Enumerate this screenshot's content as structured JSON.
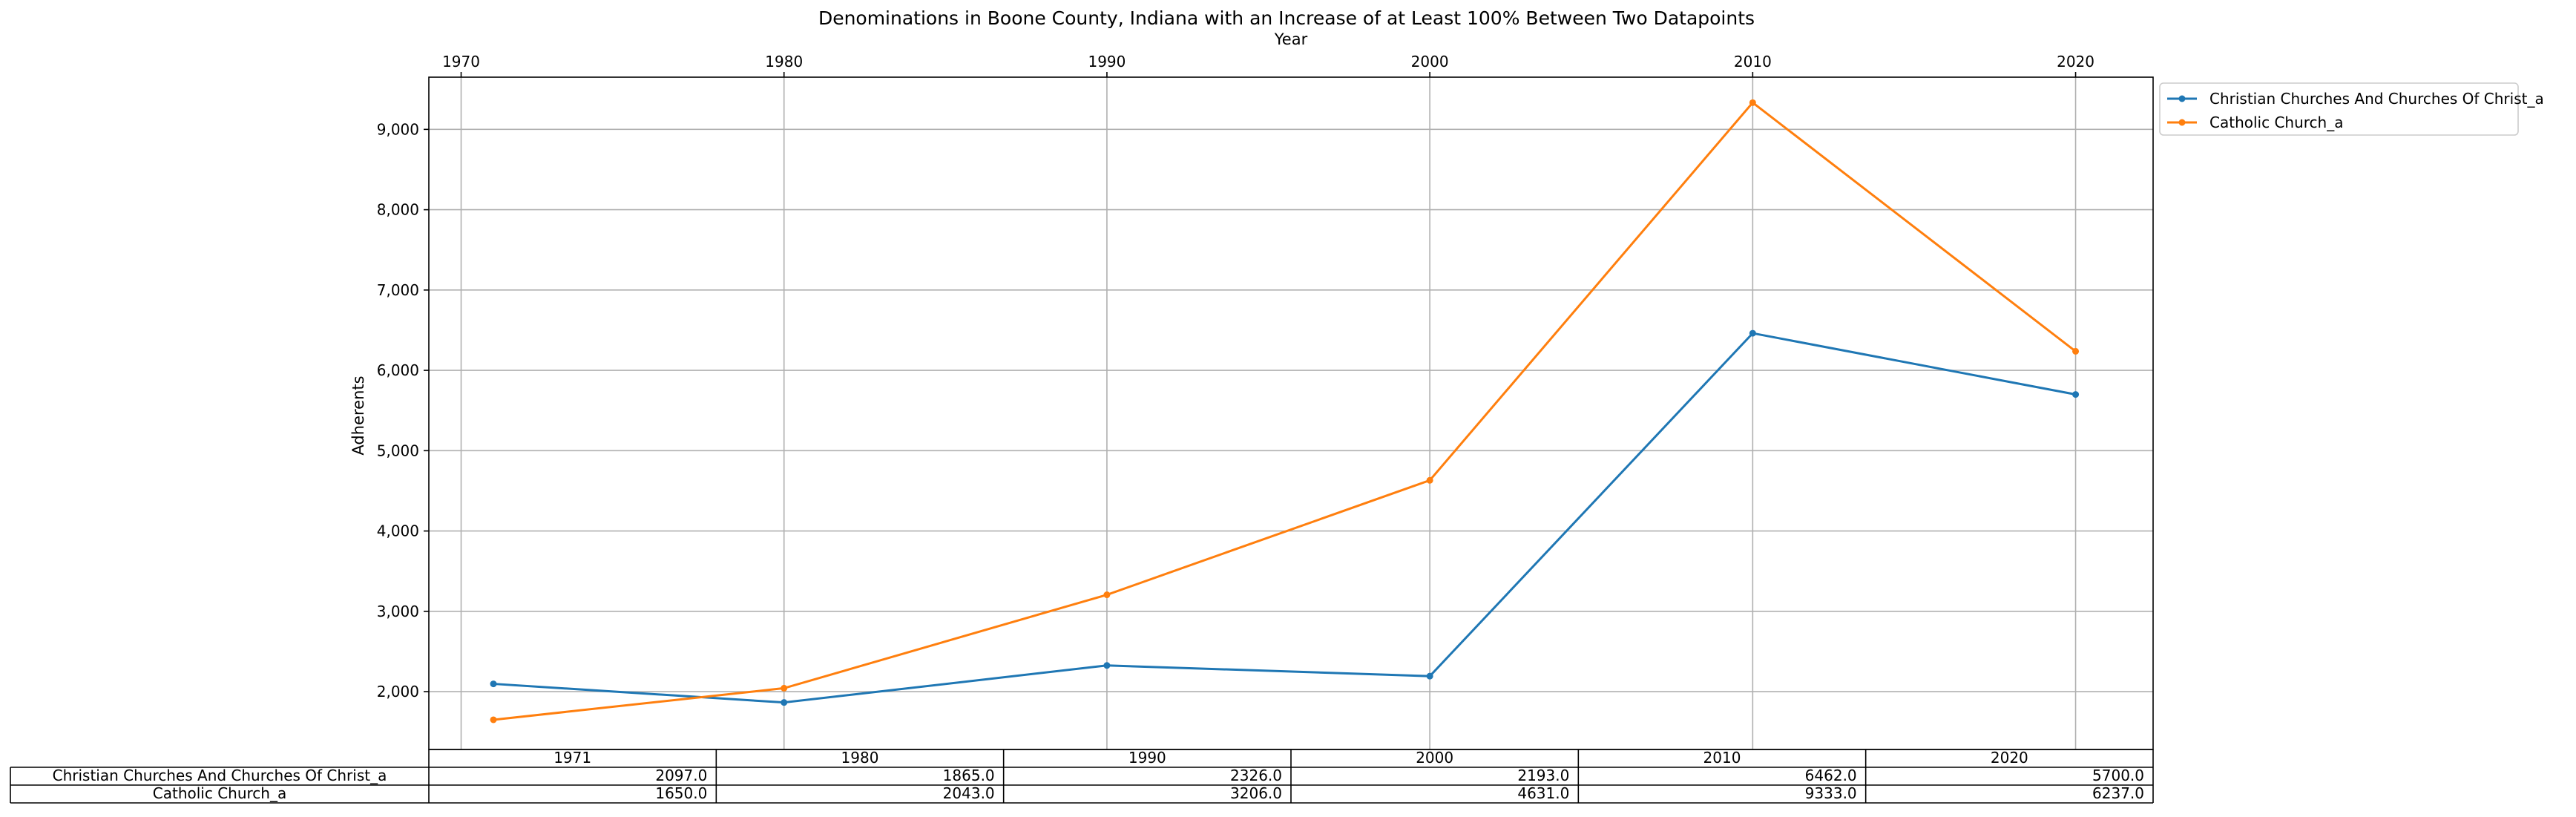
{
  "colors": {
    "series_0": "#1f77b4",
    "series_1": "#ff7f0e",
    "grid": "#b0b0b0",
    "axes": "#000000"
  },
  "chart_data": {
    "type": "line",
    "title": "Denominations in Boone County, Indiana with an Increase of at Least 100% Between Two Datapoints",
    "xlabel": "Year",
    "ylabel": "Adherents",
    "x": [
      1971,
      1980,
      1990,
      2000,
      2010,
      2020
    ],
    "x_ticks": [
      "1970",
      "1980",
      "1990",
      "2000",
      "2010",
      "2020"
    ],
    "y_ticks": [
      "2,000",
      "3,000",
      "4,000",
      "5,000",
      "6,000",
      "7,000",
      "8,000",
      "9,000"
    ],
    "xlim": [
      1969,
      2022.4
    ],
    "ylim": [
      1280,
      9650
    ],
    "x_axis_position": "top",
    "grid": true,
    "legend_position": "outside upper right",
    "series": [
      {
        "name": "Christian Churches And Churches Of Christ_a",
        "values": [
          2097.0,
          1865.0,
          2326.0,
          2193.0,
          6462.0,
          5700.0
        ]
      },
      {
        "name": "Catholic Church_a",
        "values": [
          1650.0,
          2043.0,
          3206.0,
          4631.0,
          9333.0,
          6237.0
        ]
      }
    ],
    "table": {
      "columns": [
        "1971",
        "1980",
        "1990",
        "2000",
        "2010",
        "2020"
      ],
      "rows": [
        {
          "label": "Christian Churches And Churches Of Christ_a",
          "cells": [
            "2097.0",
            "1865.0",
            "2326.0",
            "2193.0",
            "6462.0",
            "5700.0"
          ]
        },
        {
          "label": "Catholic Church_a",
          "cells": [
            "1650.0",
            "2043.0",
            "3206.0",
            "4631.0",
            "9333.0",
            "6237.0"
          ]
        }
      ]
    }
  }
}
